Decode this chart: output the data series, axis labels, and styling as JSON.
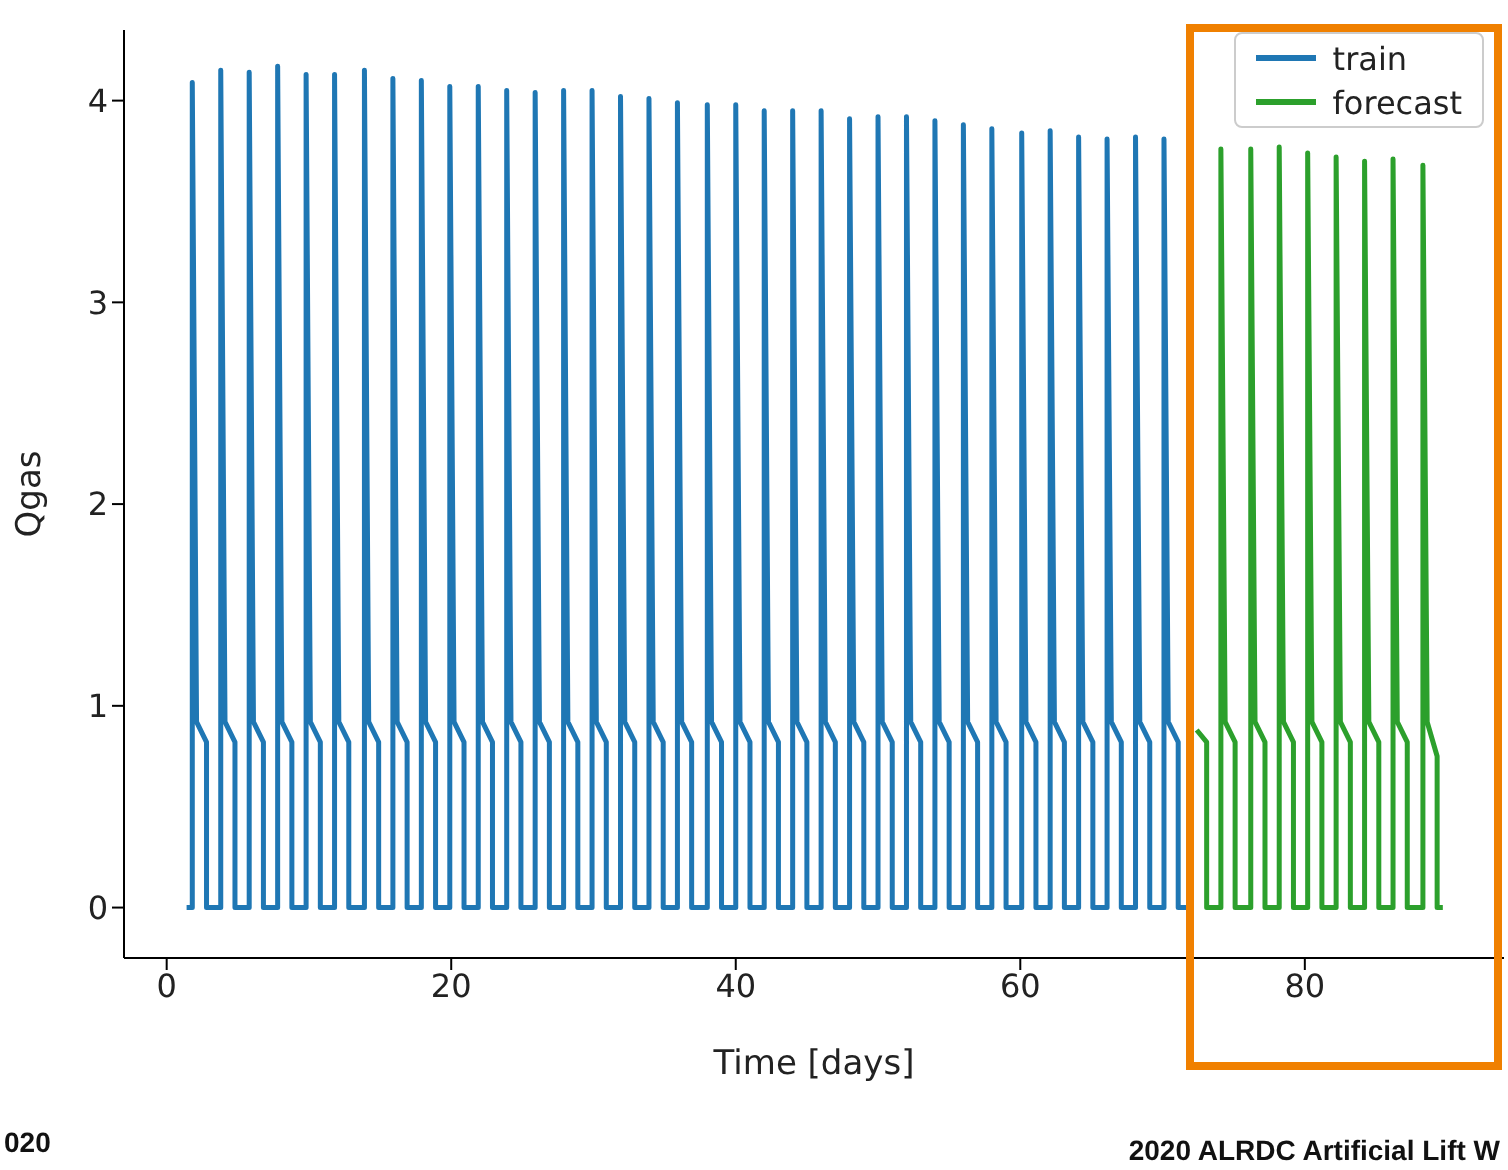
{
  "chart_data": {
    "type": "line",
    "xlabel": "Time [days]",
    "ylabel": "Qgas",
    "xlim": [
      -3,
      94
    ],
    "xticks": [
      0,
      20,
      40,
      60,
      80
    ],
    "ylim": [
      -0.25,
      4.35
    ],
    "yticks": [
      0,
      1,
      2,
      3,
      4
    ],
    "legend": "top right",
    "marker": "none",
    "line_style": "solid",
    "series": [
      {
        "name": "train",
        "color": "#1f77b4",
        "x": [
          1.4,
          1.8,
          1.8,
          2.1,
          2.8,
          2.8,
          3.8,
          3.8,
          4.1,
          4.8,
          4.8,
          5.8,
          5.8,
          6.1,
          6.8,
          6.8,
          7.8,
          7.8,
          8.1,
          8.8,
          8.8,
          9.8,
          9.8,
          10.1,
          10.8,
          10.8,
          11.8,
          11.8,
          12.1,
          12.8,
          12.8,
          13.9,
          13.9,
          14.2,
          14.9,
          14.9,
          15.9,
          15.9,
          16.2,
          16.9,
          16.9,
          17.9,
          17.9,
          18.2,
          18.9,
          18.9,
          19.9,
          19.9,
          20.2,
          20.9,
          20.9,
          21.9,
          21.9,
          22.2,
          22.9,
          22.9,
          23.9,
          23.9,
          24.2,
          24.9,
          24.9,
          25.9,
          25.9,
          26.2,
          26.9,
          26.9,
          27.9,
          27.9,
          28.2,
          28.9,
          28.9,
          29.9,
          29.9,
          30.2,
          30.9,
          30.9,
          31.9,
          31.9,
          32.2,
          32.9,
          32.9,
          33.9,
          33.9,
          34.2,
          34.9,
          34.9,
          35.9,
          35.9,
          36.2,
          36.9,
          36.9,
          38.0,
          38.0,
          38.3,
          39.0,
          39.0,
          40.0,
          40.0,
          40.3,
          41.0,
          41.0,
          42.0,
          42.0,
          42.3,
          43.0,
          43.0,
          44.0,
          44.0,
          44.3,
          45.0,
          45.0,
          46.0,
          46.0,
          46.3,
          47.0,
          47.0,
          48.0,
          48.0,
          48.3,
          49.0,
          49.0,
          50.0,
          50.0,
          50.3,
          51.0,
          51.0,
          52.0,
          52.0,
          52.3,
          53.0,
          53.0,
          54.0,
          54.0,
          54.3,
          55.0,
          55.0,
          56.0,
          56.0,
          56.3,
          57.0,
          57.0,
          58.0,
          58.0,
          58.3,
          59.0,
          59.0,
          60.1,
          60.1,
          60.4,
          61.1,
          61.1,
          62.1,
          62.1,
          62.4,
          63.1,
          63.1,
          64.1,
          64.1,
          64.4,
          65.1,
          65.1,
          66.1,
          66.1,
          66.4,
          67.1,
          67.1,
          68.1,
          68.1,
          68.4,
          69.1,
          69.1,
          70.1,
          70.1,
          70.4,
          71.1,
          71.1,
          72.1
        ],
        "values": [
          0,
          0,
          4.09,
          0.92,
          0.82,
          0,
          0,
          4.15,
          0.92,
          0.82,
          0,
          0,
          4.14,
          0.92,
          0.82,
          0,
          0,
          4.17,
          0.92,
          0.82,
          0,
          0,
          4.13,
          0.92,
          0.82,
          0,
          0,
          4.13,
          0.92,
          0.82,
          0,
          0,
          4.15,
          0.92,
          0.82,
          0,
          0,
          4.11,
          0.92,
          0.82,
          0,
          0,
          4.1,
          0.92,
          0.82,
          0,
          0,
          4.07,
          0.92,
          0.82,
          0,
          0,
          4.07,
          0.92,
          0.82,
          0,
          0,
          4.05,
          0.92,
          0.82,
          0,
          0,
          4.04,
          0.92,
          0.82,
          0,
          0,
          4.05,
          0.92,
          0.82,
          0,
          0,
          4.05,
          0.92,
          0.82,
          0,
          0,
          4.02,
          0.92,
          0.82,
          0,
          0,
          4.01,
          0.92,
          0.82,
          0,
          0,
          3.99,
          0.92,
          0.82,
          0,
          0,
          3.98,
          0.92,
          0.82,
          0,
          0,
          3.98,
          0.92,
          0.82,
          0,
          0,
          3.95,
          0.92,
          0.82,
          0,
          0,
          3.95,
          0.92,
          0.82,
          0,
          0,
          3.95,
          0.92,
          0.82,
          0,
          0,
          3.91,
          0.92,
          0.82,
          0,
          0,
          3.92,
          0.92,
          0.82,
          0,
          0,
          3.92,
          0.92,
          0.82,
          0,
          0,
          3.9,
          0.92,
          0.82,
          0,
          0,
          3.88,
          0.92,
          0.82,
          0,
          0,
          3.86,
          0.92,
          0.82,
          0,
          0,
          3.84,
          0.92,
          0.82,
          0,
          0,
          3.85,
          0.92,
          0.82,
          0,
          0,
          3.82,
          0.92,
          0.82,
          0,
          0,
          3.81,
          0.92,
          0.82,
          0,
          0,
          3.82,
          0.92,
          0.82,
          0,
          0,
          3.81,
          0.92,
          0.82,
          0,
          0
        ]
      },
      {
        "name": "forecast",
        "color": "#2ca02c",
        "x": [
          72.4,
          73.1,
          73.1,
          74.1,
          74.1,
          74.4,
          75.1,
          75.1,
          76.2,
          76.2,
          76.5,
          77.2,
          77.2,
          78.2,
          78.2,
          78.5,
          79.2,
          79.2,
          80.2,
          80.2,
          80.5,
          81.2,
          81.2,
          82.2,
          82.2,
          82.5,
          83.2,
          83.2,
          84.2,
          84.2,
          84.5,
          85.2,
          85.2,
          86.2,
          86.2,
          86.5,
          87.2,
          87.2,
          88.3,
          88.3,
          88.6,
          89.3,
          89.3,
          89.7
        ],
        "values": [
          0.88,
          0.82,
          0,
          0,
          3.76,
          0.92,
          0.82,
          0,
          0,
          3.76,
          0.92,
          0.82,
          0,
          0,
          3.77,
          0.92,
          0.82,
          0,
          0,
          3.74,
          0.92,
          0.82,
          0,
          0,
          3.72,
          0.92,
          0.82,
          0,
          0,
          3.7,
          0.92,
          0.82,
          0,
          0,
          3.71,
          0.92,
          0.82,
          0,
          0,
          3.68,
          0.92,
          0.75,
          0,
          0
        ]
      }
    ],
    "annotations": [
      "020",
      "2020 ALRDC Artificial Lift W"
    ]
  }
}
